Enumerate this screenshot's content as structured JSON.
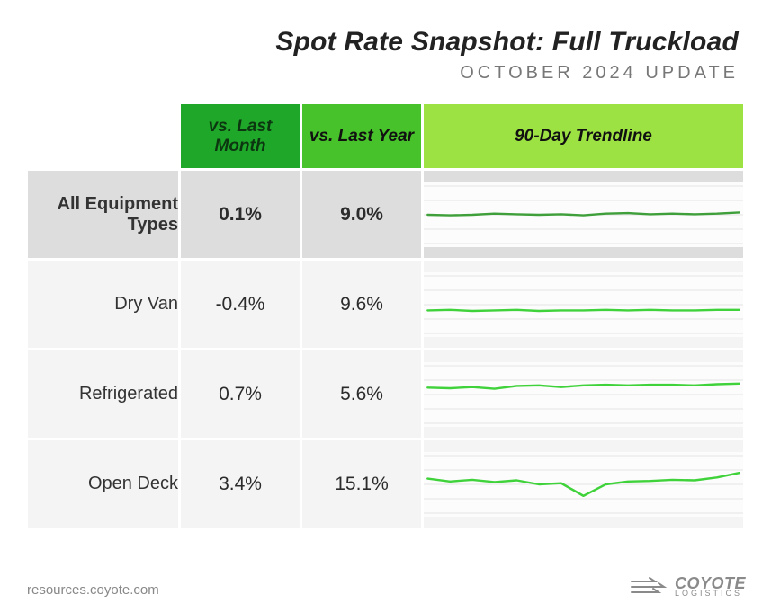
{
  "title": "Spot Rate Snapshot: Full Truckload",
  "subtitle": "OCTOBER 2024 UPDATE",
  "columns": {
    "month": "vs. Last Month",
    "year": "vs. Last Year",
    "trend": "90-Day Trendline"
  },
  "header_colors": {
    "month": "#1fa72a",
    "year": "#47c22b",
    "trend": "#9de243"
  },
  "row_highlight_bg": "#dddddd",
  "row_bg": "#f4f4f4",
  "spark": {
    "bg": "#fcfcfc",
    "grid_color": "#e5e5e5",
    "grid_lines": 5,
    "stroke_width": 2.4,
    "y_domain": [
      0,
      1
    ]
  },
  "rows": [
    {
      "label": "All Equipment Types",
      "highlight": true,
      "vs_month": "0.1%",
      "vs_year": "9.0%",
      "spark_color": "#3f9f3a",
      "spark_values": [
        0.5,
        0.49,
        0.5,
        0.52,
        0.51,
        0.5,
        0.51,
        0.49,
        0.52,
        0.53,
        0.51,
        0.52,
        0.51,
        0.52,
        0.54
      ]
    },
    {
      "label": "Dry Van",
      "highlight": false,
      "vs_month": "-0.4%",
      "vs_year": "9.6%",
      "spark_color": "#3fd23a",
      "spark_values": [
        0.4,
        0.41,
        0.39,
        0.4,
        0.41,
        0.39,
        0.4,
        0.4,
        0.41,
        0.4,
        0.41,
        0.4,
        0.4,
        0.41,
        0.41
      ]
    },
    {
      "label": "Refrigerated",
      "highlight": false,
      "vs_month": "0.7%",
      "vs_year": "5.6%",
      "spark_color": "#3fd23a",
      "spark_values": [
        0.62,
        0.61,
        0.63,
        0.6,
        0.65,
        0.66,
        0.63,
        0.66,
        0.67,
        0.66,
        0.67,
        0.67,
        0.66,
        0.68,
        0.69
      ]
    },
    {
      "label": "Open Deck",
      "highlight": false,
      "vs_month": "3.4%",
      "vs_year": "15.1%",
      "spark_color": "#3fd23a",
      "spark_values": [
        0.6,
        0.55,
        0.58,
        0.54,
        0.57,
        0.5,
        0.52,
        0.3,
        0.5,
        0.55,
        0.56,
        0.58,
        0.57,
        0.62,
        0.7
      ]
    }
  ],
  "source": "resources.coyote.com",
  "brand_top": "COYOTE",
  "brand_bottom": "LOGISTICS"
}
